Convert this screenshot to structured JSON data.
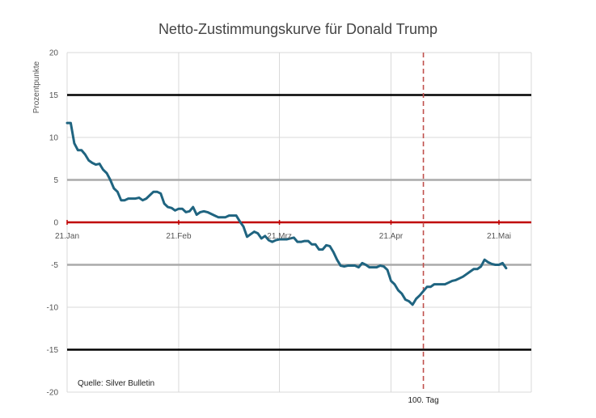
{
  "chart_data": {
    "type": "line",
    "title": "Netto-Zustimmungskurve für Donald Trump",
    "xlabel": "",
    "ylabel": "Prozentpunkte",
    "x_start": "2025-01-21",
    "x_end": "2025-05-23",
    "x_tick_labels": [
      {
        "date": "2025-01-21",
        "label": "21.Jan"
      },
      {
        "date": "2025-02-21",
        "label": "21.Feb"
      },
      {
        "date": "2025-03-21",
        "label": "21.Mrz"
      },
      {
        "date": "2025-04-21",
        "label": "21.Apr"
      },
      {
        "date": "2025-05-21",
        "label": "21.Mai"
      }
    ],
    "ylim": [
      -20,
      20
    ],
    "y_ticks": [
      -20,
      -15,
      -10,
      -5,
      0,
      5,
      10,
      15,
      20
    ],
    "grid": true,
    "reference_lines": [
      {
        "y": 15,
        "color": "#000000"
      },
      {
        "y": 5,
        "color": "#aaaaaa"
      },
      {
        "y": 0,
        "color": "#c00000"
      },
      {
        "y": -5,
        "color": "#aaaaaa"
      },
      {
        "y": -15,
        "color": "#000000"
      }
    ],
    "series": [
      {
        "color": "#1f6480",
        "points": [
          [
            "2025-01-21",
            11.7
          ],
          [
            "2025-01-22",
            11.7
          ],
          [
            "2025-01-23",
            9.3
          ],
          [
            "2025-01-24",
            8.5
          ],
          [
            "2025-01-25",
            8.5
          ],
          [
            "2025-01-26",
            8.0
          ],
          [
            "2025-01-27",
            7.3
          ],
          [
            "2025-01-28",
            7.0
          ],
          [
            "2025-01-29",
            6.8
          ],
          [
            "2025-01-30",
            6.9
          ],
          [
            "2025-01-31",
            6.2
          ],
          [
            "2025-02-01",
            5.8
          ],
          [
            "2025-02-02",
            5.0
          ],
          [
            "2025-02-03",
            4.0
          ],
          [
            "2025-02-04",
            3.6
          ],
          [
            "2025-02-05",
            2.6
          ],
          [
            "2025-02-06",
            2.6
          ],
          [
            "2025-02-07",
            2.8
          ],
          [
            "2025-02-08",
            2.8
          ],
          [
            "2025-02-09",
            2.8
          ],
          [
            "2025-02-10",
            2.9
          ],
          [
            "2025-02-11",
            2.6
          ],
          [
            "2025-02-12",
            2.8
          ],
          [
            "2025-02-13",
            3.2
          ],
          [
            "2025-02-14",
            3.6
          ],
          [
            "2025-02-15",
            3.6
          ],
          [
            "2025-02-16",
            3.4
          ],
          [
            "2025-02-17",
            2.2
          ],
          [
            "2025-02-18",
            1.8
          ],
          [
            "2025-02-19",
            1.7
          ],
          [
            "2025-02-20",
            1.4
          ],
          [
            "2025-02-21",
            1.6
          ],
          [
            "2025-02-22",
            1.6
          ],
          [
            "2025-02-23",
            1.2
          ],
          [
            "2025-02-24",
            1.3
          ],
          [
            "2025-02-25",
            1.8
          ],
          [
            "2025-02-26",
            0.9
          ],
          [
            "2025-02-27",
            1.2
          ],
          [
            "2025-02-28",
            1.3
          ],
          [
            "2025-03-01",
            1.2
          ],
          [
            "2025-03-02",
            1.0
          ],
          [
            "2025-03-03",
            0.8
          ],
          [
            "2025-03-04",
            0.6
          ],
          [
            "2025-03-05",
            0.6
          ],
          [
            "2025-03-06",
            0.6
          ],
          [
            "2025-03-07",
            0.8
          ],
          [
            "2025-03-08",
            0.8
          ],
          [
            "2025-03-09",
            0.8
          ],
          [
            "2025-03-10",
            0.1
          ],
          [
            "2025-03-11",
            -0.5
          ],
          [
            "2025-03-12",
            -1.7
          ],
          [
            "2025-03-13",
            -1.4
          ],
          [
            "2025-03-14",
            -1.1
          ],
          [
            "2025-03-15",
            -1.3
          ],
          [
            "2025-03-16",
            -1.9
          ],
          [
            "2025-03-17",
            -1.6
          ],
          [
            "2025-03-18",
            -2.1
          ],
          [
            "2025-03-19",
            -2.3
          ],
          [
            "2025-03-20",
            -2.1
          ],
          [
            "2025-03-21",
            -2.0
          ],
          [
            "2025-03-22",
            -2.0
          ],
          [
            "2025-03-23",
            -2.0
          ],
          [
            "2025-03-24",
            -1.9
          ],
          [
            "2025-03-25",
            -1.8
          ],
          [
            "2025-03-26",
            -2.3
          ],
          [
            "2025-03-27",
            -2.3
          ],
          [
            "2025-03-28",
            -2.2
          ],
          [
            "2025-03-29",
            -2.2
          ],
          [
            "2025-03-30",
            -2.6
          ],
          [
            "2025-03-31",
            -2.6
          ],
          [
            "2025-04-01",
            -3.2
          ],
          [
            "2025-04-02",
            -3.2
          ],
          [
            "2025-04-03",
            -2.7
          ],
          [
            "2025-04-04",
            -2.8
          ],
          [
            "2025-04-05",
            -3.5
          ],
          [
            "2025-04-06",
            -4.4
          ],
          [
            "2025-04-07",
            -5.1
          ],
          [
            "2025-04-08",
            -5.2
          ],
          [
            "2025-04-09",
            -5.1
          ],
          [
            "2025-04-10",
            -5.1
          ],
          [
            "2025-04-11",
            -5.1
          ],
          [
            "2025-04-12",
            -5.3
          ],
          [
            "2025-04-13",
            -4.8
          ],
          [
            "2025-04-14",
            -5.0
          ],
          [
            "2025-04-15",
            -5.3
          ],
          [
            "2025-04-16",
            -5.3
          ],
          [
            "2025-04-17",
            -5.3
          ],
          [
            "2025-04-18",
            -5.1
          ],
          [
            "2025-04-19",
            -5.2
          ],
          [
            "2025-04-20",
            -5.6
          ],
          [
            "2025-04-21",
            -6.9
          ],
          [
            "2025-04-22",
            -7.3
          ],
          [
            "2025-04-23",
            -8.0
          ],
          [
            "2025-04-24",
            -8.4
          ],
          [
            "2025-04-25",
            -9.1
          ],
          [
            "2025-04-26",
            -9.3
          ],
          [
            "2025-04-27",
            -9.7
          ],
          [
            "2025-04-28",
            -9.0
          ],
          [
            "2025-04-29",
            -8.6
          ],
          [
            "2025-04-30",
            -8.1
          ],
          [
            "2025-05-01",
            -7.6
          ],
          [
            "2025-05-02",
            -7.6
          ],
          [
            "2025-05-03",
            -7.3
          ],
          [
            "2025-05-04",
            -7.3
          ],
          [
            "2025-05-05",
            -7.3
          ],
          [
            "2025-05-06",
            -7.3
          ],
          [
            "2025-05-07",
            -7.1
          ],
          [
            "2025-05-08",
            -6.9
          ],
          [
            "2025-05-09",
            -6.8
          ],
          [
            "2025-05-10",
            -6.6
          ],
          [
            "2025-05-11",
            -6.4
          ],
          [
            "2025-05-12",
            -6.1
          ],
          [
            "2025-05-13",
            -5.8
          ],
          [
            "2025-05-14",
            -5.5
          ],
          [
            "2025-05-15",
            -5.5
          ],
          [
            "2025-05-16",
            -5.2
          ],
          [
            "2025-05-17",
            -4.4
          ],
          [
            "2025-05-18",
            -4.7
          ],
          [
            "2025-05-19",
            -4.9
          ],
          [
            "2025-05-20",
            -5.0
          ],
          [
            "2025-05-21",
            -5.0
          ],
          [
            "2025-05-22",
            -4.8
          ],
          [
            "2025-05-23",
            -5.4
          ]
        ]
      }
    ],
    "annotations": [
      {
        "date": "2025-04-30",
        "label": "100. Tag",
        "style": "dashed",
        "color": "#c0504d"
      }
    ],
    "source_note": "Quelle: Silver Bulletin"
  }
}
